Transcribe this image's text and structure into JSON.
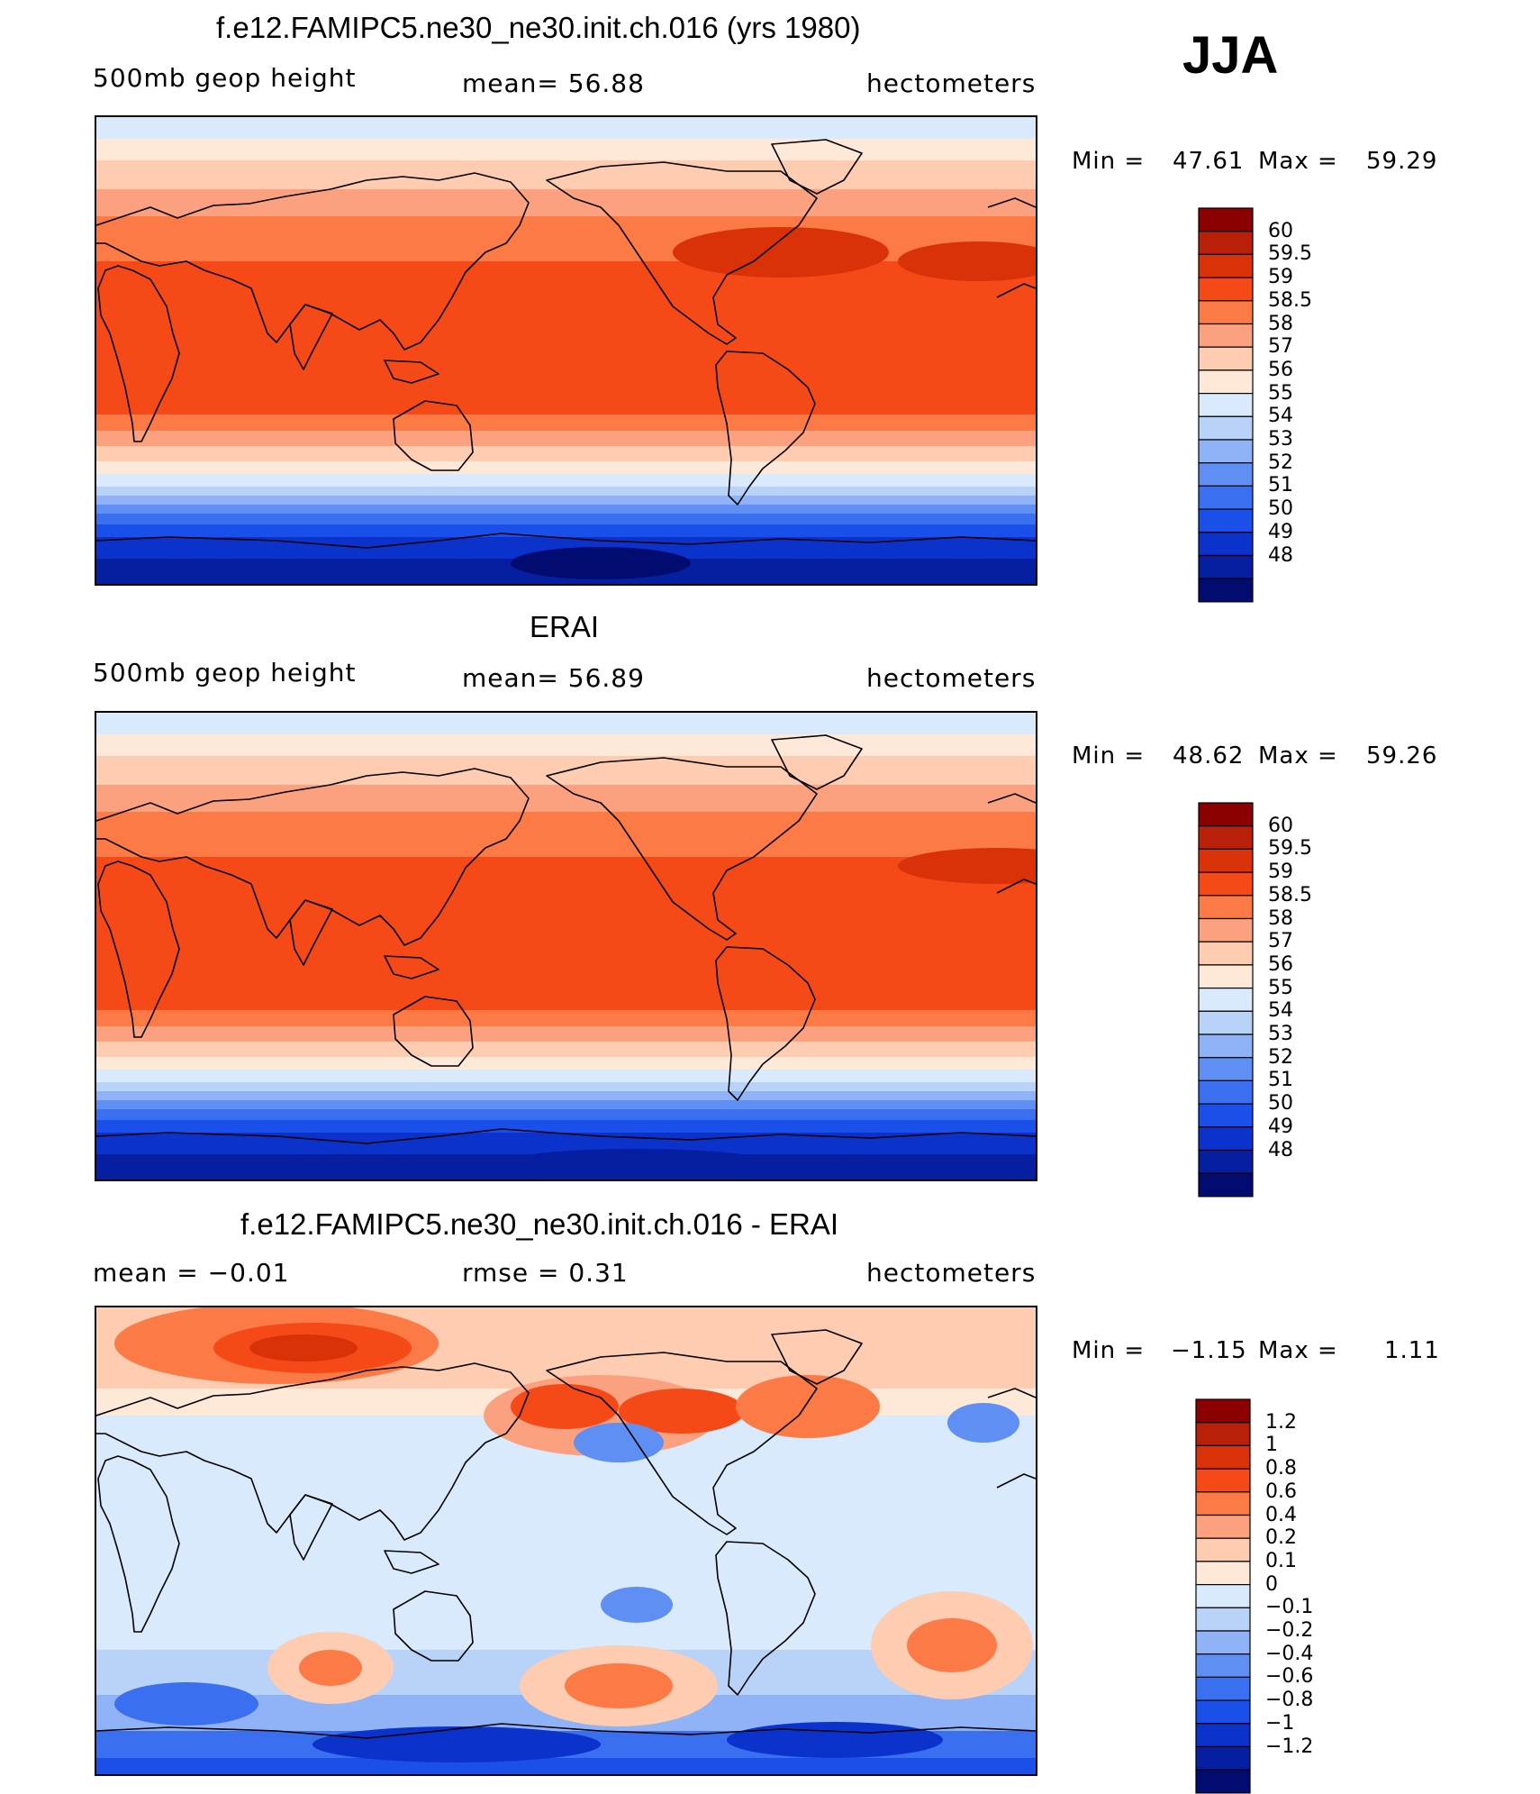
{
  "season": "JJA",
  "panels": [
    {
      "title": "f.e12.FAMIPC5.ne30_ne30.init.ch.016 (yrs 1980)",
      "left_label": "500mb  geop  height",
      "center_label": "mean=   56.88",
      "right_label": "hectometers",
      "min_label": "Min  =",
      "min_value": "47.61",
      "max_label": "Max  =",
      "max_value": "59.29",
      "colorbar": {
        "colors": [
          "#8b0000",
          "#b82009",
          "#d93208",
          "#f54a18",
          "#fc7a45",
          "#fca17f",
          "#fdccb1",
          "#fee9d8",
          "#d8eafb",
          "#b9d3f8",
          "#8fb3f6",
          "#5f8ff3",
          "#3a6ff0",
          "#1b4fea",
          "#0b33cc",
          "#061fa0",
          "#020c70"
        ],
        "labels": [
          "60",
          "59.5",
          "59",
          "58.5",
          "58",
          "57",
          "56",
          "55",
          "54",
          "53",
          "52",
          "51",
          "50",
          "49",
          "48"
        ]
      }
    },
    {
      "title": "ERAI",
      "left_label": "500mb  geop  height",
      "center_label": "mean=   56.89",
      "right_label": "hectometers",
      "min_label": "Min  =",
      "min_value": "48.62",
      "max_label": "Max  =",
      "max_value": "59.26",
      "colorbar": {
        "colors": [
          "#8b0000",
          "#b82009",
          "#d93208",
          "#f54a18",
          "#fc7a45",
          "#fca17f",
          "#fdccb1",
          "#fee9d8",
          "#d8eafb",
          "#b9d3f8",
          "#8fb3f6",
          "#5f8ff3",
          "#3a6ff0",
          "#1b4fea",
          "#0b33cc",
          "#061fa0",
          "#020c70"
        ],
        "labels": [
          "60",
          "59.5",
          "59",
          "58.5",
          "58",
          "57",
          "56",
          "55",
          "54",
          "53",
          "52",
          "51",
          "50",
          "49",
          "48"
        ]
      }
    },
    {
      "title": "f.e12.FAMIPC5.ne30_ne30.init.ch.016 - ERAI",
      "left_label": "mean  =    −0.01",
      "center_label": "rmse  =     0.31",
      "right_label": "hectometers",
      "min_label": "Min  =",
      "min_value": "−1.15",
      "max_label": "Max  =",
      "max_value": "1.11",
      "colorbar": {
        "colors": [
          "#8b0000",
          "#b82009",
          "#d93208",
          "#f54a18",
          "#fc7a45",
          "#fca17f",
          "#fdccb1",
          "#fee9d8",
          "#d8eafb",
          "#b9d3f8",
          "#8fb3f6",
          "#5f8ff3",
          "#3a6ff0",
          "#1b4fea",
          "#0b33cc",
          "#061fa0",
          "#020c70"
        ],
        "labels": [
          "1.2",
          "1",
          "0.8",
          "0.6",
          "0.4",
          "0.2",
          "0.1",
          "0",
          "−0.1",
          "−0.2",
          "−0.4",
          "−0.6",
          "−0.8",
          "−1",
          "−1.2"
        ]
      }
    }
  ]
}
